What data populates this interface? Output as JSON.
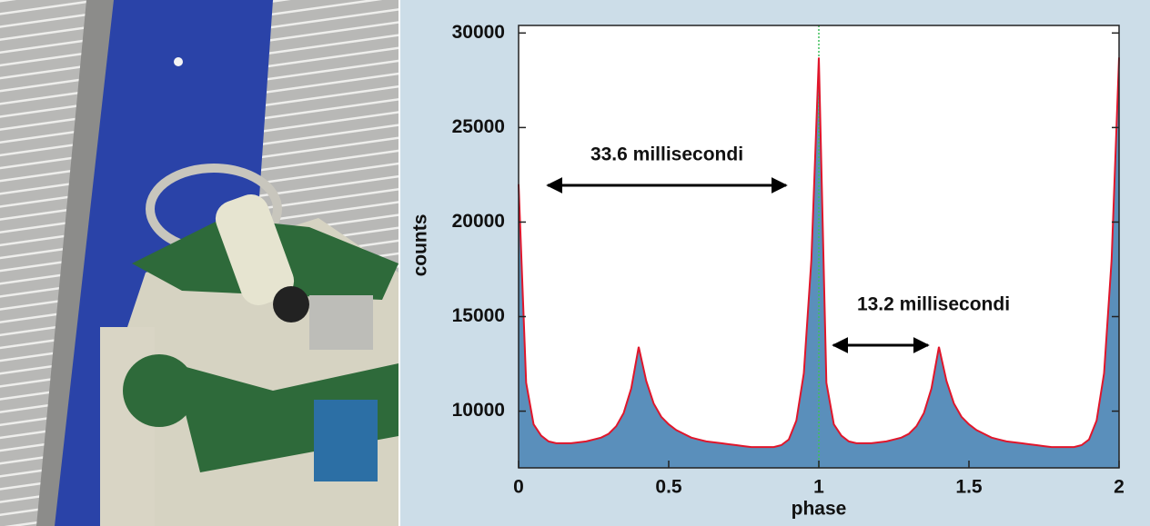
{
  "chart_data": {
    "type": "area",
    "x_label": "phase",
    "y_label": "counts",
    "x": [
      0,
      0.025,
      0.05,
      0.075,
      0.1,
      0.125,
      0.15,
      0.175,
      0.2,
      0.225,
      0.25,
      0.275,
      0.3,
      0.325,
      0.35,
      0.375,
      0.4,
      0.425,
      0.45,
      0.475,
      0.5,
      0.525,
      0.55,
      0.575,
      0.6,
      0.625,
      0.65,
      0.675,
      0.7,
      0.725,
      0.75,
      0.775,
      0.8,
      0.825,
      0.85,
      0.875,
      0.9,
      0.925,
      0.95,
      0.975,
      1,
      1.025,
      1.05,
      1.075,
      1.1,
      1.125,
      1.15,
      1.175,
      1.2,
      1.225,
      1.25,
      1.275,
      1.3,
      1.325,
      1.35,
      1.375,
      1.4,
      1.425,
      1.45,
      1.475,
      1.5,
      1.525,
      1.55,
      1.575,
      1.6,
      1.625,
      1.65,
      1.675,
      1.7,
      1.725,
      1.75,
      1.775,
      1.8,
      1.825,
      1.85,
      1.875,
      1.9,
      1.925,
      1.95,
      1.975,
      2
    ],
    "values": [
      22000,
      11500,
      9300,
      8700,
      8400,
      8300,
      8300,
      8300,
      8350,
      8400,
      8500,
      8600,
      8800,
      9200,
      9900,
      11200,
      13400,
      11600,
      10400,
      9700,
      9300,
      9000,
      8800,
      8600,
      8500,
      8400,
      8350,
      8300,
      8250,
      8200,
      8150,
      8100,
      8100,
      8100,
      8100,
      8200,
      8500,
      9500,
      12000,
      18000,
      28700,
      11500,
      9300,
      8700,
      8400,
      8300,
      8300,
      8300,
      8350,
      8400,
      8500,
      8600,
      8800,
      9200,
      9900,
      11200,
      13400,
      11600,
      10400,
      9700,
      9300,
      9000,
      8800,
      8600,
      8500,
      8400,
      8350,
      8300,
      8250,
      8200,
      8150,
      8100,
      8100,
      8100,
      8100,
      8200,
      8500,
      9500,
      12000,
      18000,
      28700
    ],
    "color": "#5a8fbb",
    "line_color": "#e0162b",
    "marker_line_color": "#3fbf5a",
    "marker_line_x": 1,
    "xlim": [
      0,
      2
    ],
    "ylim": [
      7000,
      30400
    ],
    "xticks": [
      0,
      0.5,
      1,
      1.5,
      2
    ],
    "yticks": [
      10000,
      15000,
      20000,
      25000,
      30000
    ],
    "grid": false,
    "annotations": [
      {
        "text": "33.6 millisecondi"
      },
      {
        "text": "13.2 millisecondi"
      }
    ]
  }
}
